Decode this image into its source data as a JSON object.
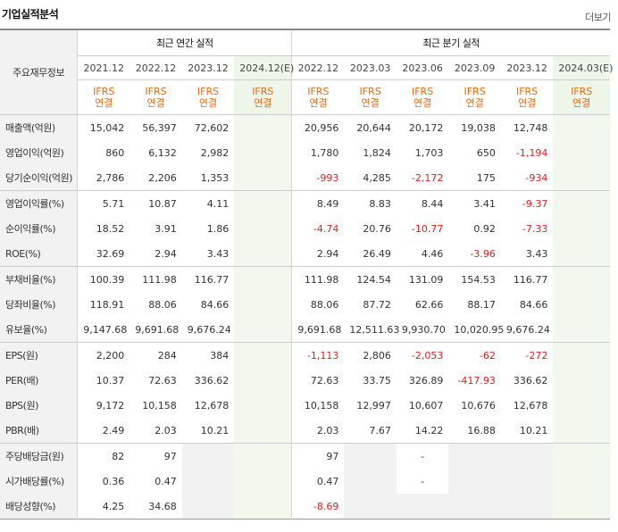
{
  "title": "기업실적분석",
  "more": "더보기",
  "header": {
    "label_col": "주요재무정보",
    "annual_group": "최근 연간 실적",
    "quarter_group": "최근 분기 실적",
    "annual_years": [
      "2021.12",
      "2022.12",
      "2023.12",
      "2024.12(E)"
    ],
    "quarter_years": [
      "2022.12",
      "2023.03",
      "2023.06",
      "2023.09",
      "2023.12",
      "2024.03(E)"
    ],
    "ifrs_line1": "IFRS",
    "ifrs_line2": "연결"
  },
  "rows": [
    {
      "label": "매출액(억원)",
      "annual": [
        "15,042",
        "56,397",
        "72,602",
        ""
      ],
      "quarter": [
        "20,956",
        "20,644",
        "20,172",
        "19,038",
        "12,748",
        ""
      ]
    },
    {
      "label": "영업이익(억원)",
      "annual": [
        "860",
        "6,132",
        "2,982",
        ""
      ],
      "quarter": [
        "1,780",
        "1,824",
        "1,703",
        "650",
        "-1,194",
        ""
      ]
    },
    {
      "label": "당기순이익(억원)",
      "annual": [
        "2,786",
        "2,206",
        "1,353",
        ""
      ],
      "quarter": [
        "-993",
        "4,285",
        "-2,172",
        "175",
        "-934",
        ""
      ]
    },
    {
      "label": "영업이익률(%)",
      "annual": [
        "5.71",
        "10.87",
        "4.11",
        ""
      ],
      "quarter": [
        "8.49",
        "8.83",
        "8.44",
        "3.41",
        "-9.37",
        ""
      ]
    },
    {
      "label": "순이익률(%)",
      "annual": [
        "18.52",
        "3.91",
        "1.86",
        ""
      ],
      "quarter": [
        "-4.74",
        "20.76",
        "-10.77",
        "0.92",
        "-7.33",
        ""
      ]
    },
    {
      "label": "ROE(%)",
      "annual": [
        "32.69",
        "2.94",
        "3.43",
        ""
      ],
      "quarter": [
        "2.94",
        "26.49",
        "4.46",
        "-3.96",
        "3.43",
        ""
      ]
    },
    {
      "label": "부채비율(%)",
      "annual": [
        "100.39",
        "111.98",
        "116.77",
        ""
      ],
      "quarter": [
        "111.98",
        "124.54",
        "131.09",
        "154.53",
        "116.77",
        ""
      ]
    },
    {
      "label": "당좌비율(%)",
      "annual": [
        "118.91",
        "88.06",
        "84.66",
        ""
      ],
      "quarter": [
        "88.06",
        "87.72",
        "62.66",
        "88.17",
        "84.66",
        ""
      ]
    },
    {
      "label": "유보율(%)",
      "annual": [
        "9,147.68",
        "9,691.68",
        "9,676.24",
        ""
      ],
      "quarter": [
        "9,691.68",
        "12,511.63",
        "9,930.70",
        "10,020.95",
        "9,676.24",
        ""
      ]
    },
    {
      "label": "EPS(원)",
      "annual": [
        "2,200",
        "284",
        "384",
        ""
      ],
      "quarter": [
        "-1,113",
        "2,806",
        "-2,053",
        "-62",
        "-272",
        ""
      ]
    },
    {
      "label": "PER(배)",
      "annual": [
        "10.37",
        "72.63",
        "336.62",
        ""
      ],
      "quarter": [
        "72.63",
        "33.75",
        "326.89",
        "-417.93",
        "336.62",
        ""
      ]
    },
    {
      "label": "BPS(원)",
      "annual": [
        "9,172",
        "10,158",
        "12,678",
        ""
      ],
      "quarter": [
        "10,158",
        "12,997",
        "10,607",
        "10,676",
        "12,678",
        ""
      ]
    },
    {
      "label": "PBR(배)",
      "annual": [
        "2.49",
        "2.03",
        "10.21",
        ""
      ],
      "quarter": [
        "2.03",
        "7.67",
        "14.22",
        "16.88",
        "10.21",
        ""
      ]
    },
    {
      "label": "주당배당금(원)",
      "annual": [
        "82",
        "97",
        "",
        ""
      ],
      "quarter": [
        "97",
        "",
        "-",
        "",
        "",
        ""
      ]
    },
    {
      "label": "시가배당률(%)",
      "annual": [
        "0.36",
        "0.47",
        "",
        ""
      ],
      "quarter": [
        "0.47",
        "",
        "-",
        "",
        "",
        ""
      ]
    },
    {
      "label": "배당성향(%)",
      "annual": [
        "4.25",
        "34.68",
        "",
        ""
      ],
      "quarter": [
        "-8.69",
        "",
        "",
        "",
        "",
        ""
      ]
    }
  ],
  "row_groups": [
    3,
    3,
    3,
    4,
    3
  ],
  "colors": {
    "negative": "#e02020",
    "ifrs": "#e86a10",
    "estimate_bg": "#eef6e9"
  }
}
